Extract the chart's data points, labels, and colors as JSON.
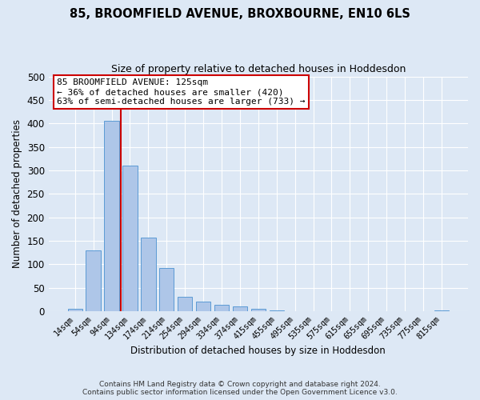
{
  "title": "85, BROOMFIELD AVENUE, BROXBOURNE, EN10 6LS",
  "subtitle": "Size of property relative to detached houses in Hoddesdon",
  "xlabel": "Distribution of detached houses by size in Hoddesdon",
  "ylabel": "Number of detached properties",
  "footer_line1": "Contains HM Land Registry data © Crown copyright and database right 2024.",
  "footer_line2": "Contains public sector information licensed under the Open Government Licence v3.0.",
  "bar_labels": [
    "14sqm",
    "54sqm",
    "94sqm",
    "134sqm",
    "174sqm",
    "214sqm",
    "254sqm",
    "294sqm",
    "334sqm",
    "374sqm",
    "415sqm",
    "455sqm",
    "495sqm",
    "535sqm",
    "575sqm",
    "615sqm",
    "655sqm",
    "695sqm",
    "735sqm",
    "775sqm",
    "815sqm"
  ],
  "bar_values": [
    6,
    130,
    405,
    310,
    157,
    92,
    30,
    21,
    14,
    10,
    5,
    1,
    0,
    0,
    0,
    0,
    0,
    0,
    0,
    0,
    2
  ],
  "bar_color": "#aec6e8",
  "bar_edgecolor": "#5b9bd5",
  "background_color": "#dde8f5",
  "grid_color": "#ffffff",
  "vline_color": "#cc0000",
  "annotation_title": "85 BROOMFIELD AVENUE: 125sqm",
  "annotation_line1": "← 36% of detached houses are smaller (420)",
  "annotation_line2": "63% of semi-detached houses are larger (733) →",
  "annotation_box_edgecolor": "#cc0000",
  "ylim": [
    0,
    500
  ],
  "yticks": [
    0,
    50,
    100,
    150,
    200,
    250,
    300,
    350,
    400,
    450,
    500
  ]
}
